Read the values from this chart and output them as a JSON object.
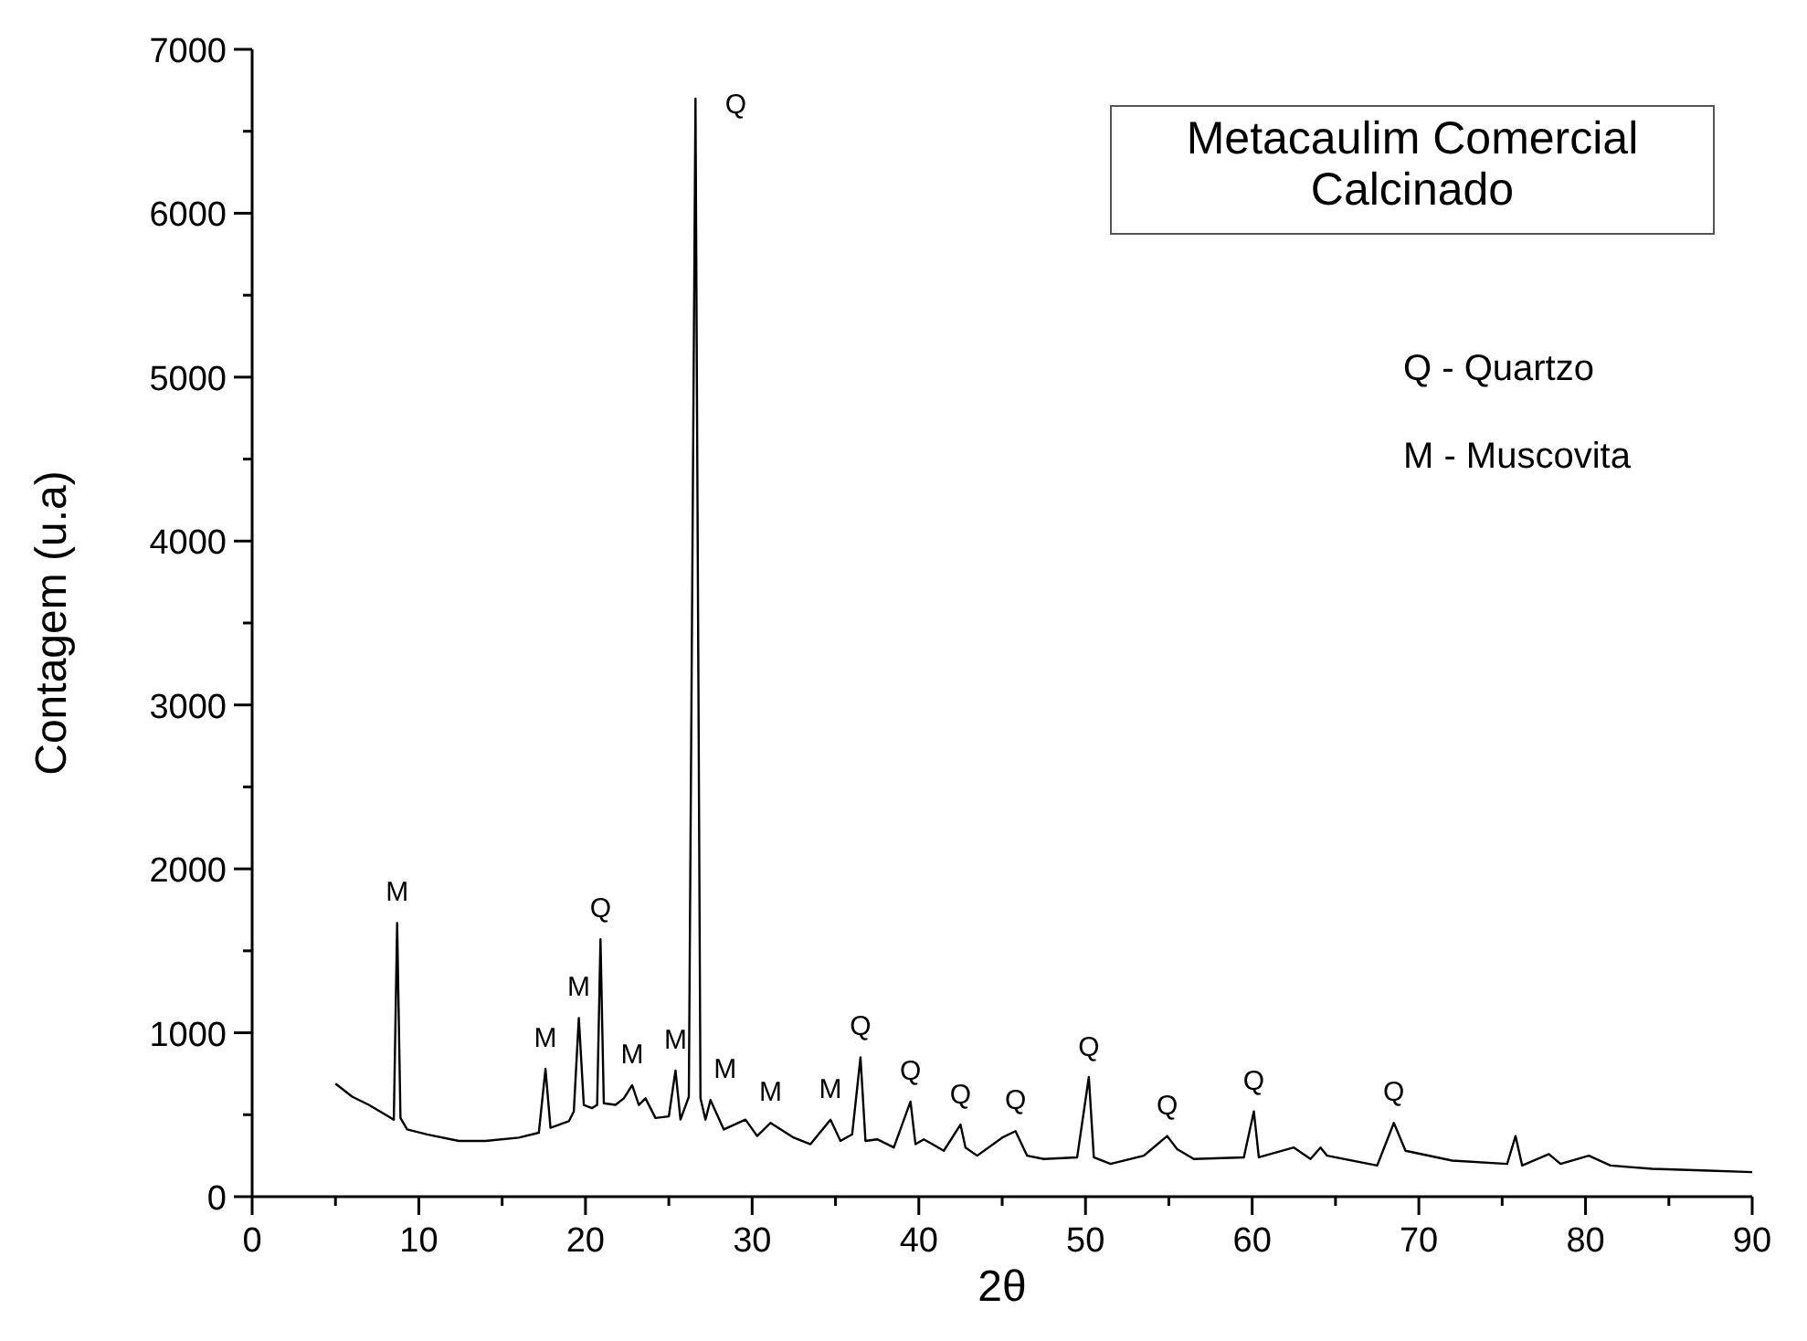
{
  "chart_data": {
    "type": "line",
    "title": "Metacaulim Comercial\nCalcinado",
    "xlabel": "2θ",
    "ylabel": "Contagem (u.a)",
    "xlim": [
      0,
      90
    ],
    "xticks": [
      0,
      10,
      20,
      30,
      40,
      50,
      60,
      70,
      80,
      90
    ],
    "ylim": [
      0,
      7000
    ],
    "yticks": [
      0,
      1000,
      2000,
      3000,
      4000,
      5000,
      6000,
      7000
    ],
    "grid": false,
    "marker": "none",
    "line_style": "solid",
    "series": [
      {
        "color": "#000000",
        "x": [
          5,
          6,
          7,
          8,
          8.5,
          8.7,
          8.9,
          9.3,
          10.5,
          12.4,
          14,
          16,
          17.2,
          17.6,
          17.9,
          19,
          19.3,
          19.6,
          19.9,
          20.4,
          20.7,
          20.9,
          21.1,
          21.8,
          22.3,
          22.8,
          23.2,
          23.6,
          24.2,
          25.0,
          25.4,
          25.7,
          26.2,
          26.6,
          26.9,
          27.2,
          27.5,
          28.3,
          29.6,
          30.3,
          31.1,
          32.5,
          33.5,
          34.7,
          35.3,
          36.0,
          36.5,
          36.8,
          37.5,
          38.5,
          39.5,
          39.8,
          40.3,
          41.5,
          42.5,
          42.8,
          43.5,
          45.0,
          45.8,
          46.5,
          47.5,
          49.5,
          50.2,
          50.5,
          51.5,
          53.5,
          54.9,
          55.5,
          56.5,
          59.5,
          60.1,
          60.4,
          62.5,
          63.5,
          64.1,
          64.5,
          67.5,
          68.5,
          69.2,
          72,
          75.3,
          75.8,
          76.2,
          77.8,
          78.5,
          80.2,
          81.5,
          84,
          87,
          90
        ],
        "values": [
          690,
          610,
          560,
          500,
          470,
          1670,
          480,
          410,
          380,
          340,
          340,
          360,
          390,
          780,
          420,
          460,
          520,
          1090,
          560,
          540,
          560,
          1570,
          570,
          560,
          600,
          680,
          560,
          600,
          480,
          490,
          770,
          470,
          610,
          6700,
          600,
          470,
          590,
          410,
          470,
          370,
          450,
          360,
          320,
          470,
          340,
          380,
          850,
          340,
          350,
          300,
          580,
          320,
          350,
          280,
          440,
          300,
          250,
          360,
          400,
          250,
          230,
          240,
          730,
          240,
          200,
          250,
          370,
          290,
          230,
          240,
          520,
          240,
          300,
          230,
          300,
          250,
          190,
          450,
          280,
          220,
          200,
          370,
          190,
          260,
          200,
          250,
          190,
          170,
          160,
          150
        ]
      }
    ],
    "annotations": [
      {
        "text": "M",
        "x": 8.7,
        "y": 1670
      },
      {
        "text": "M",
        "x": 17.6,
        "y": 780
      },
      {
        "text": "M",
        "x": 19.6,
        "y": 1090
      },
      {
        "text": "Q",
        "x": 20.9,
        "y": 1570
      },
      {
        "text": "M",
        "x": 22.8,
        "y": 680
      },
      {
        "text": "M",
        "x": 25.4,
        "y": 770
      },
      {
        "text": "Q",
        "x": 26.6,
        "y": 6700
      },
      {
        "text": "M",
        "x": 27.5,
        "y": 590
      },
      {
        "text": "M",
        "x": 31.1,
        "y": 450
      },
      {
        "text": "M",
        "x": 34.7,
        "y": 470
      },
      {
        "text": "Q",
        "x": 36.5,
        "y": 850
      },
      {
        "text": "Q",
        "x": 39.5,
        "y": 580
      },
      {
        "text": "Q",
        "x": 42.5,
        "y": 435
      },
      {
        "text": "Q",
        "x": 45.8,
        "y": 400
      },
      {
        "text": "Q",
        "x": 50.2,
        "y": 725
      },
      {
        "text": "Q",
        "x": 54.9,
        "y": 370
      },
      {
        "text": "Q",
        "x": 60.1,
        "y": 520
      },
      {
        "text": "Q",
        "x": 68.5,
        "y": 450
      },
      "Q - Quartzo",
      "M - Muscovita"
    ]
  }
}
